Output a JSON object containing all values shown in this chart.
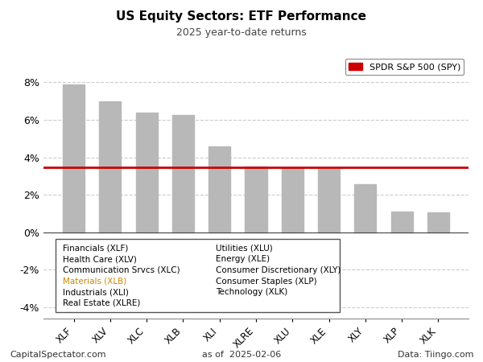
{
  "title": "US Equity Sectors: ETF Performance",
  "subtitle": "2025 year-to-date returns",
  "categories": [
    "XLF",
    "XLV",
    "XLC",
    "XLB",
    "XLI",
    "XLRE",
    "XLU",
    "XLE",
    "XLY",
    "XLP",
    "XLK"
  ],
  "values": [
    7.9,
    7.0,
    6.4,
    6.25,
    4.6,
    3.5,
    3.45,
    3.38,
    2.55,
    1.1,
    1.05
  ],
  "spy_value": 3.48,
  "bar_color": "#b8b8b8",
  "spy_color": "#cc0000",
  "ylim": [
    -4.6,
    9.5
  ],
  "yticks": [
    -4,
    -2,
    0,
    2,
    4,
    6,
    8
  ],
  "legend_labels_left": [
    "Financials (XLF)",
    "Health Care (XLV)",
    "Communication Srvcs (XLC)",
    "Materials (XLB)",
    "Industrials (XLI)",
    "Real Estate (XLRE)"
  ],
  "legend_label_colors_left": [
    "#000000",
    "#000000",
    "#000000",
    "#cc8800",
    "#000000",
    "#000000"
  ],
  "legend_labels_right": [
    "Utilities (XLU)",
    "Energy (XLE)",
    "Consumer Discretionary (XLY)",
    "Consumer Staples (XLP)",
    "Technology (XLK)"
  ],
  "legend_label_colors_right": [
    "#000000",
    "#000000",
    "#000000",
    "#000000",
    "#000000"
  ],
  "footer_left": "CapitalSpectator.com",
  "footer_center": "as of  2025-02-06",
  "footer_right": "Data: Tiingo.com",
  "spy_legend_label": "SPDR S&P 500 (SPY)",
  "background_color": "#ffffff",
  "plot_bg_color": "#ffffff",
  "grid_color": "#cccccc"
}
